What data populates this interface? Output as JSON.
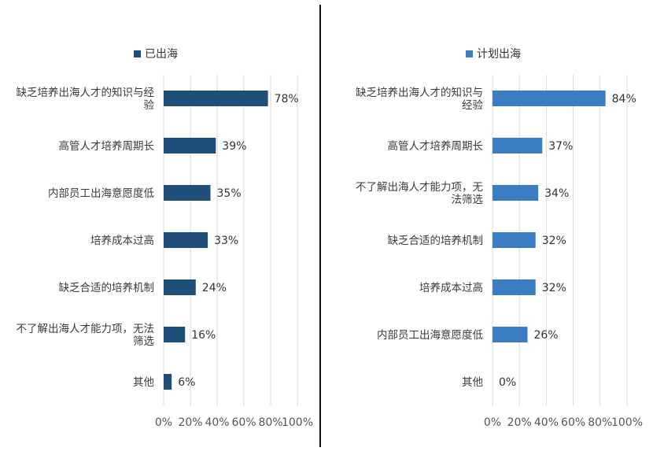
{
  "chart_data": [
    {
      "type": "bar",
      "orientation": "horizontal",
      "legend": "已出海",
      "color": "#1F4E79",
      "categories": [
        [
          "缺乏培养出海人才的知识与经",
          "验"
        ],
        [
          "高管人才培养周期长"
        ],
        [
          "内部员工出海意愿度低"
        ],
        [
          "培养成本过高"
        ],
        [
          "缺乏合适的培养机制"
        ],
        [
          "不了解出海人才能力项，无法",
          "筛选"
        ],
        [
          "其他"
        ]
      ],
      "values": [
        78,
        39,
        35,
        33,
        24,
        16,
        6
      ],
      "value_labels": [
        "78%",
        "39%",
        "35%",
        "33%",
        "24%",
        "16%",
        "6%"
      ],
      "xticks": [
        "0%",
        "20%",
        "40%",
        "60%",
        "80%",
        "100%"
      ],
      "xlim": [
        0,
        100
      ],
      "grid": true,
      "legend_position": "top"
    },
    {
      "type": "bar",
      "orientation": "horizontal",
      "legend": "计划出海",
      "color": "#3A7DC2",
      "categories": [
        [
          "缺乏培养出海人才的知识与",
          "经验"
        ],
        [
          "高管人才培养周期长"
        ],
        [
          "不了解出海人才能力项，无",
          "法筛选"
        ],
        [
          "缺乏合适的培养机制"
        ],
        [
          "培养成本过高"
        ],
        [
          "内部员工出海意愿度低"
        ],
        [
          "其他"
        ]
      ],
      "values": [
        84,
        37,
        34,
        32,
        32,
        26,
        0
      ],
      "value_labels": [
        "84%",
        "37%",
        "34%",
        "32%",
        "32%",
        "26%",
        "0%"
      ],
      "xticks": [
        "0%",
        "20%",
        "40%",
        "60%",
        "80%",
        "100%"
      ],
      "xlim": [
        0,
        100
      ],
      "grid": true,
      "legend_position": "top"
    }
  ]
}
